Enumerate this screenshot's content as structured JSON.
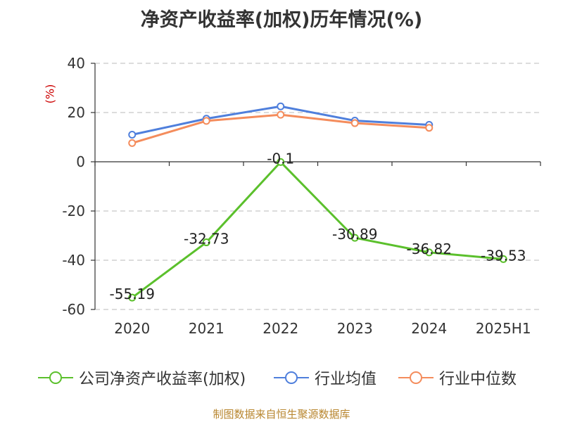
{
  "chart_data": {
    "type": "line",
    "title": "净资产收益率(加权)历年情况(%)",
    "ylabel": "(%)",
    "xlabel": "",
    "categories": [
      "2020",
      "2021",
      "2022",
      "2023",
      "2024",
      "2025H1"
    ],
    "ylim": [
      -60,
      40
    ],
    "yticks": [
      40,
      20,
      0,
      -20,
      -40,
      -60
    ],
    "grid": true,
    "legend_position": "bottom",
    "series": [
      {
        "name": "公司净资产收益率(加权)",
        "color": "#5bc02c",
        "values": [
          -55.19,
          -32.73,
          -0.1,
          -30.89,
          -36.82,
          -39.53
        ],
        "labels": [
          "-55.19",
          "-32.73",
          "-0.1",
          "-30.89",
          "-36.82",
          "-39.53"
        ]
      },
      {
        "name": "行业均值",
        "color": "#4f7fdc",
        "values": [
          11.0,
          17.5,
          22.5,
          16.7,
          15.0,
          null
        ]
      },
      {
        "name": "行业中位数",
        "color": "#f48c5c",
        "values": [
          7.6,
          16.6,
          19.1,
          15.7,
          13.8,
          null
        ]
      }
    ]
  },
  "source": "制图数据来自恒生聚源数据库"
}
